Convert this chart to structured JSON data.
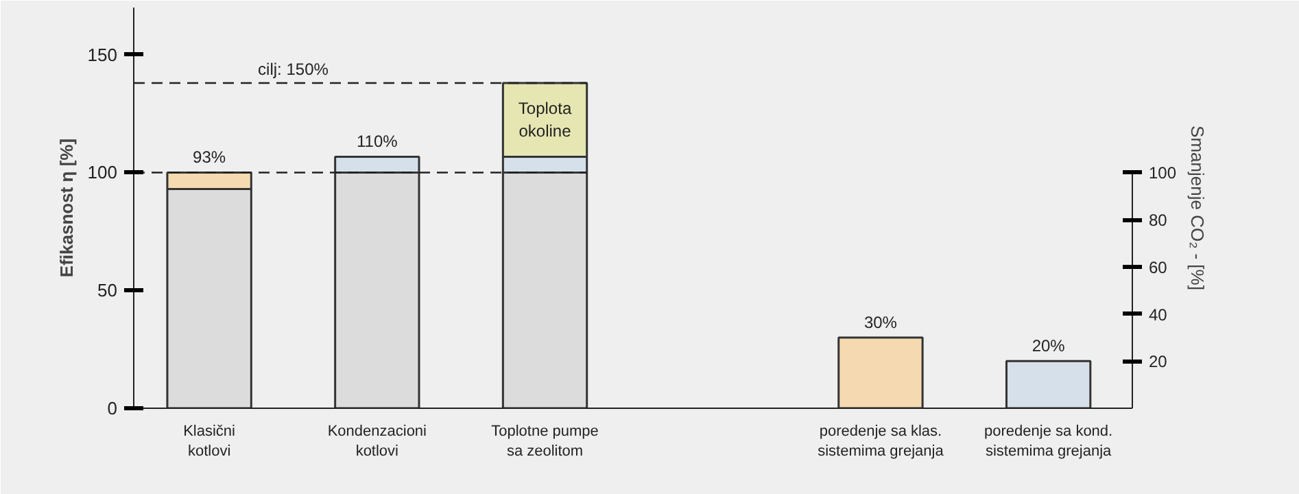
{
  "chart_data": {
    "type": "bar",
    "stacked": true,
    "categories": [
      "Klasični\nkotlovi",
      "Kondenzacioni\nkotlovi",
      "Toplotne pumpe\nsa zeolitom",
      null,
      "poredenje sa klas.\nsistemima grejanja",
      "poredenje sa kond.\nsistemima grejanja"
    ],
    "series": [
      {
        "color": "#dcdcdc",
        "values": [
          93,
          100,
          100,
          null,
          null,
          null
        ]
      },
      {
        "colors": [
          "#f5d9b0",
          "#d6e0ea",
          "#d6e0ea",
          null,
          null,
          null
        ],
        "values": [
          7,
          6.7,
          6.7,
          null,
          null,
          null
        ]
      },
      {
        "name": "Toplota\nokoline",
        "color": "#e6e6b2",
        "values": [
          null,
          null,
          31.3,
          null,
          null,
          null
        ]
      },
      {
        "axis": "y2",
        "colors": [
          null,
          null,
          null,
          null,
          "#f5d9b0",
          "#d6e0ea"
        ],
        "values": [
          null,
          null,
          null,
          null,
          30,
          20
        ],
        "value_labels": [
          null,
          null,
          null,
          null,
          "30%",
          "20%"
        ]
      }
    ],
    "annotations": [
      {
        "text": "93%",
        "x": "Klasični\nkotlovi",
        "y": 100
      },
      {
        "text": "110%",
        "x": "Kondenzacioni\nkotlovi",
        "y": 106.7
      },
      {
        "text": "cilj: 150%",
        "y": 138
      }
    ],
    "ylabel": "Efikasnost η [%]",
    "y2label": "Smanjenje CO₂ - [%]",
    "ylim": [
      0,
      170
    ],
    "yticks": [
      0,
      50,
      100,
      150
    ],
    "y2lim": [
      0,
      170
    ],
    "y2ticks": [
      20,
      40,
      60,
      80,
      100
    ],
    "ref_lines": [
      {
        "axis": "y",
        "value": 100,
        "line_style": "dashed"
      },
      {
        "axis": "y",
        "value": 138,
        "line_style": "dashed"
      }
    ],
    "grid": false
  }
}
